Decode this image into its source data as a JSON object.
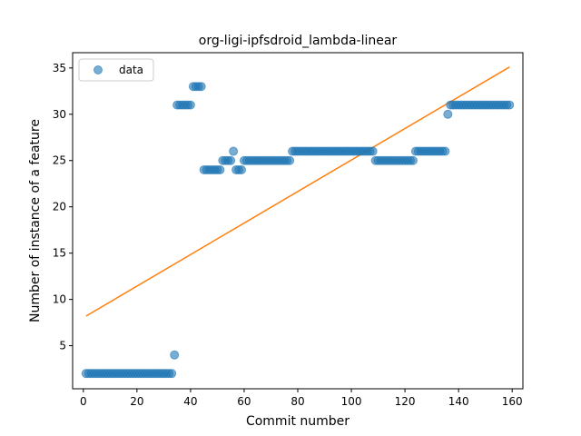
{
  "chart_data": {
    "type": "scatter",
    "title": "org-ligi-ipfsdroid_lambda-linear",
    "xlabel": "Commit number",
    "ylabel": "Number of instance of a feature",
    "xlim": [
      -4,
      164
    ],
    "ylim": [
      0.35,
      36.65
    ],
    "xticks": [
      0,
      20,
      40,
      60,
      80,
      100,
      120,
      140,
      160
    ],
    "yticks": [
      5,
      10,
      15,
      20,
      25,
      30,
      35
    ],
    "grid": false,
    "legend": {
      "placement": "top-left",
      "entries": [
        "data"
      ]
    },
    "colors": {
      "data": "#1f77b4",
      "fit": "#ff7f0e"
    },
    "series": [
      {
        "name": "data",
        "kind": "scatter",
        "points": [
          [
            1,
            2
          ],
          [
            2,
            2
          ],
          [
            3,
            2
          ],
          [
            4,
            2
          ],
          [
            5,
            2
          ],
          [
            6,
            2
          ],
          [
            7,
            2
          ],
          [
            8,
            2
          ],
          [
            9,
            2
          ],
          [
            10,
            2
          ],
          [
            11,
            2
          ],
          [
            12,
            2
          ],
          [
            13,
            2
          ],
          [
            14,
            2
          ],
          [
            15,
            2
          ],
          [
            16,
            2
          ],
          [
            17,
            2
          ],
          [
            18,
            2
          ],
          [
            19,
            2
          ],
          [
            20,
            2
          ],
          [
            21,
            2
          ],
          [
            22,
            2
          ],
          [
            23,
            2
          ],
          [
            24,
            2
          ],
          [
            25,
            2
          ],
          [
            26,
            2
          ],
          [
            27,
            2
          ],
          [
            28,
            2
          ],
          [
            29,
            2
          ],
          [
            30,
            2
          ],
          [
            31,
            2
          ],
          [
            32,
            2
          ],
          [
            33,
            2
          ],
          [
            34,
            4
          ],
          [
            35,
            31
          ],
          [
            36,
            31
          ],
          [
            37,
            31
          ],
          [
            38,
            31
          ],
          [
            39,
            31
          ],
          [
            40,
            31
          ],
          [
            41,
            33
          ],
          [
            42,
            33
          ],
          [
            43,
            33
          ],
          [
            44,
            33
          ],
          [
            45,
            24
          ],
          [
            46,
            24
          ],
          [
            47,
            24
          ],
          [
            48,
            24
          ],
          [
            49,
            24
          ],
          [
            50,
            24
          ],
          [
            51,
            24
          ],
          [
            52,
            25
          ],
          [
            53,
            25
          ],
          [
            54,
            25
          ],
          [
            55,
            25
          ],
          [
            56,
            26
          ],
          [
            57,
            24
          ],
          [
            58,
            24
          ],
          [
            59,
            24
          ],
          [
            60,
            25
          ],
          [
            61,
            25
          ],
          [
            62,
            25
          ],
          [
            63,
            25
          ],
          [
            64,
            25
          ],
          [
            65,
            25
          ],
          [
            66,
            25
          ],
          [
            67,
            25
          ],
          [
            68,
            25
          ],
          [
            69,
            25
          ],
          [
            70,
            25
          ],
          [
            71,
            25
          ],
          [
            72,
            25
          ],
          [
            73,
            25
          ],
          [
            74,
            25
          ],
          [
            75,
            25
          ],
          [
            76,
            25
          ],
          [
            77,
            25
          ],
          [
            78,
            26
          ],
          [
            79,
            26
          ],
          [
            80,
            26
          ],
          [
            81,
            26
          ],
          [
            82,
            26
          ],
          [
            83,
            26
          ],
          [
            84,
            26
          ],
          [
            85,
            26
          ],
          [
            86,
            26
          ],
          [
            87,
            26
          ],
          [
            88,
            26
          ],
          [
            89,
            26
          ],
          [
            90,
            26
          ],
          [
            91,
            26
          ],
          [
            92,
            26
          ],
          [
            93,
            26
          ],
          [
            94,
            26
          ],
          [
            95,
            26
          ],
          [
            96,
            26
          ],
          [
            97,
            26
          ],
          [
            98,
            26
          ],
          [
            99,
            26
          ],
          [
            100,
            26
          ],
          [
            101,
            26
          ],
          [
            102,
            26
          ],
          [
            103,
            26
          ],
          [
            104,
            26
          ],
          [
            105,
            26
          ],
          [
            106,
            26
          ],
          [
            107,
            26
          ],
          [
            108,
            26
          ],
          [
            109,
            25
          ],
          [
            110,
            25
          ],
          [
            111,
            25
          ],
          [
            112,
            25
          ],
          [
            113,
            25
          ],
          [
            114,
            25
          ],
          [
            115,
            25
          ],
          [
            116,
            25
          ],
          [
            117,
            25
          ],
          [
            118,
            25
          ],
          [
            119,
            25
          ],
          [
            120,
            25
          ],
          [
            121,
            25
          ],
          [
            122,
            25
          ],
          [
            123,
            25
          ],
          [
            124,
            26
          ],
          [
            125,
            26
          ],
          [
            126,
            26
          ],
          [
            127,
            26
          ],
          [
            128,
            26
          ],
          [
            129,
            26
          ],
          [
            130,
            26
          ],
          [
            131,
            26
          ],
          [
            132,
            26
          ],
          [
            133,
            26
          ],
          [
            134,
            26
          ],
          [
            135,
            26
          ],
          [
            136,
            30
          ],
          [
            137,
            31
          ],
          [
            138,
            31
          ],
          [
            139,
            31
          ],
          [
            140,
            31
          ],
          [
            141,
            31
          ],
          [
            142,
            31
          ],
          [
            143,
            31
          ],
          [
            144,
            31
          ],
          [
            145,
            31
          ],
          [
            146,
            31
          ],
          [
            147,
            31
          ],
          [
            148,
            31
          ],
          [
            149,
            31
          ],
          [
            150,
            31
          ],
          [
            151,
            31
          ],
          [
            152,
            31
          ],
          [
            153,
            31
          ],
          [
            154,
            31
          ],
          [
            155,
            31
          ],
          [
            156,
            31
          ],
          [
            157,
            31
          ],
          [
            158,
            31
          ],
          [
            159,
            31
          ]
        ]
      },
      {
        "name": "",
        "kind": "line",
        "points": [
          [
            1,
            8.2
          ],
          [
            159,
            35.1
          ]
        ]
      }
    ]
  }
}
